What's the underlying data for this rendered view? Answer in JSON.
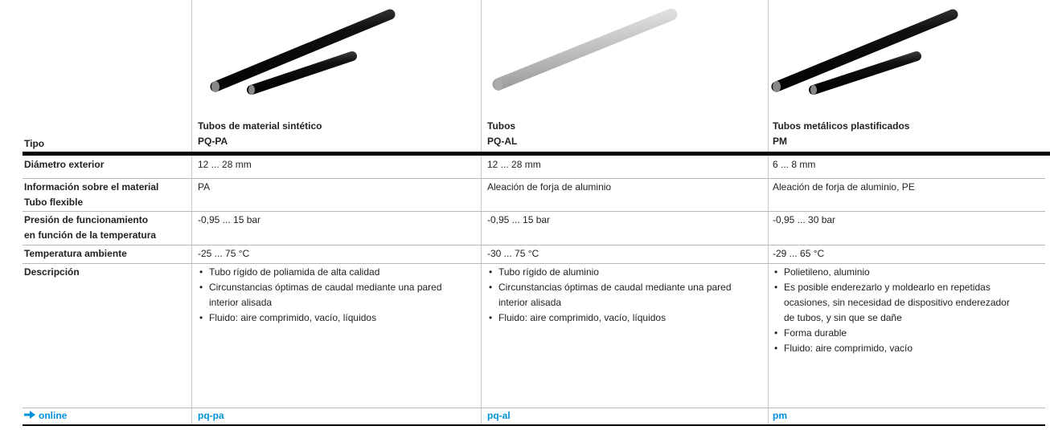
{
  "header": {
    "label": "Tipo",
    "products": [
      {
        "name": "Tubos de material sintético",
        "code": "PQ-PA"
      },
      {
        "name": "Tubos",
        "code": "PQ-AL"
      },
      {
        "name": "Tubos metálicos plastificados",
        "code": "PM"
      }
    ]
  },
  "table": {
    "rows": [
      {
        "label": [
          "Diámetro exterior"
        ],
        "cells": [
          "12 ... 28 mm",
          "12 ... 28 mm",
          "6 ... 8 mm"
        ]
      },
      {
        "label": [
          "Información sobre el material",
          "Tubo flexible"
        ],
        "cells": [
          "PA",
          "Aleación de forja de aluminio",
          "Aleación de forja de aluminio, PE"
        ]
      },
      {
        "label": [
          "Presión de funcionamiento",
          "en función de la temperatura"
        ],
        "cells": [
          "-0,95 ... 15 bar",
          "-0,95 ... 15 bar",
          "-0,95 ... 30 bar"
        ]
      },
      {
        "label": [
          "Temperatura ambiente"
        ],
        "cells": [
          "-25 ... 75 °C",
          "-30 ... 75 °C",
          "-29 ... 65 °C"
        ]
      }
    ],
    "description": {
      "label": "Descripción",
      "cells": [
        [
          "Tubo rígido de poliamida de alta calidad",
          "Circunstancias óptimas de caudal mediante una pared interior alisada",
          "Fluido: aire comprimido, vacío, líquidos"
        ],
        [
          "Tubo rígido de aluminio",
          "Circunstancias óptimas de caudal mediante una pared interior alisada",
          "Fluido: aire comprimido, vacío, líquidos"
        ],
        [
          "Polietileno, aluminio",
          "Es posible enderezarlo y moldearlo en repetidas ocasiones, sin necesidad de dispositivo enderezador de tubos, y sin que se dañe",
          "Forma durable",
          "Fluido: aire comprimido, vacío"
        ]
      ]
    },
    "online": {
      "label": "online",
      "links": [
        "pq-pa",
        "pq-al",
        "pm"
      ]
    }
  }
}
